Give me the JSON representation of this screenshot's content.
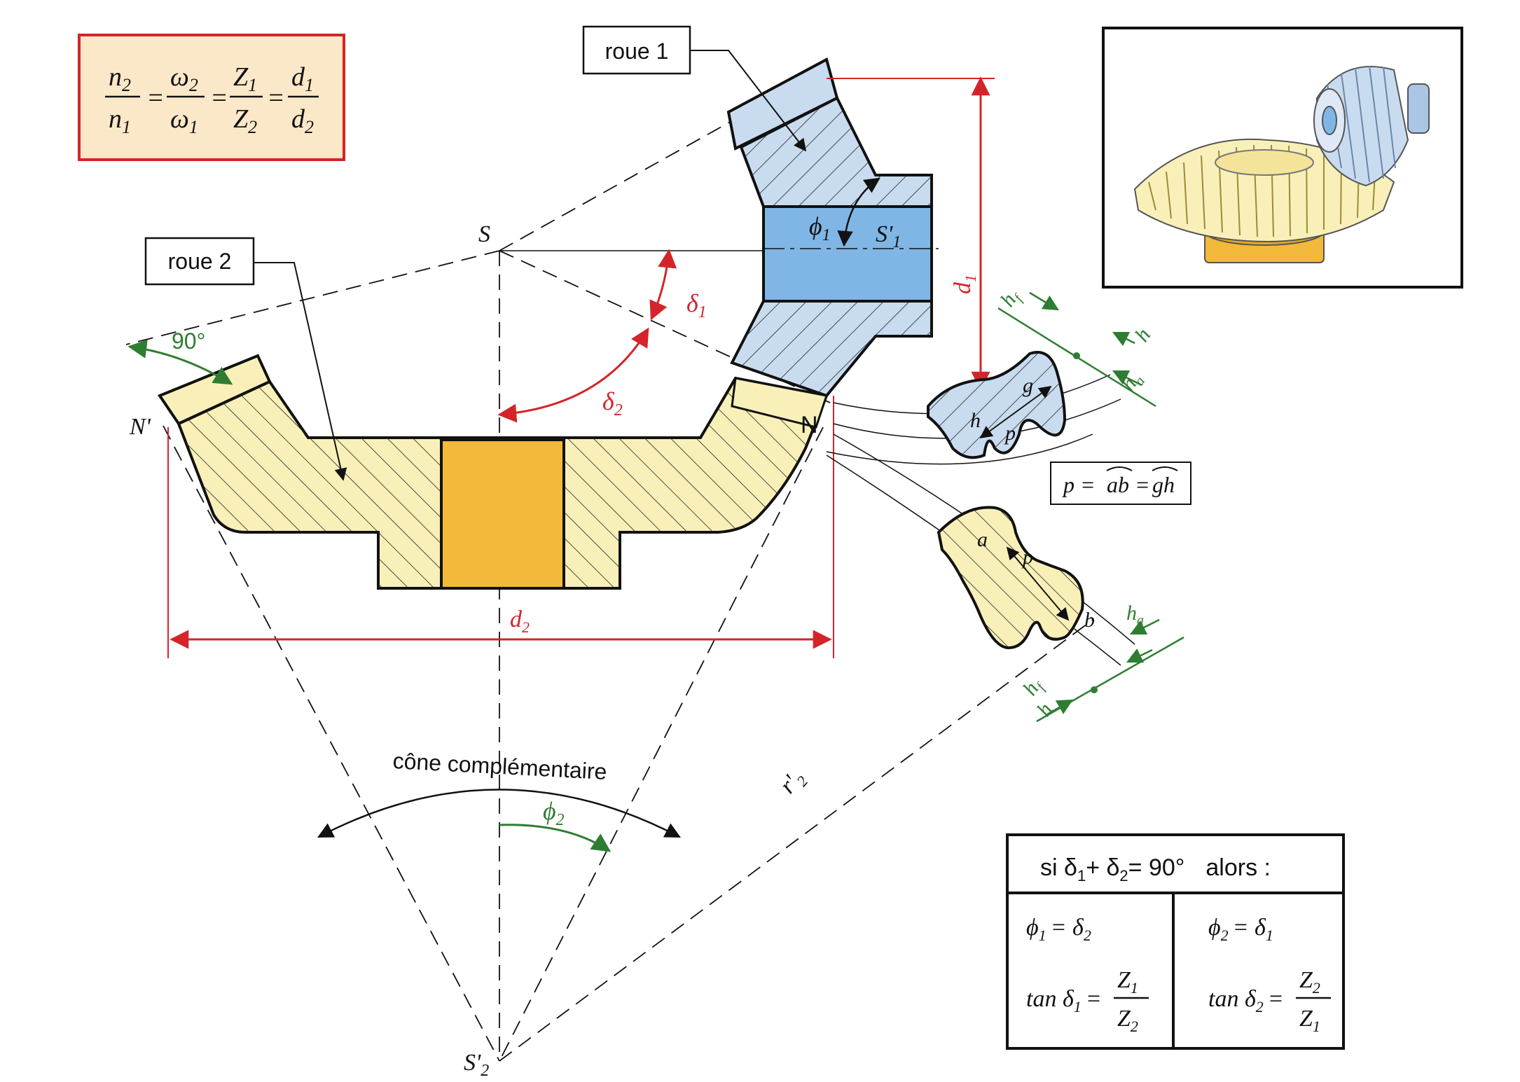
{
  "labels": {
    "roue1": "roue 1",
    "roue2": "roue 2",
    "S": "S",
    "S1p": "S'",
    "S1p_sub": "1",
    "S2p": "S'",
    "S2p_sub": "2",
    "Np": "N'",
    "N": "N",
    "angle90": "90°",
    "delta": "δ",
    "phi": "ϕ",
    "sub1": "1",
    "sub2": "2",
    "d": "d",
    "r": "r'",
    "cone": "cône complémentaire",
    "h": "h",
    "hf": "h",
    "hf_sub": "f",
    "ha": "h",
    "ha_sub": "a",
    "g": "g",
    "p": "p",
    "a": "a",
    "b": "b",
    "pitch_p": "p =",
    "pitch_ab": "ab",
    "pitch_eq": "=",
    "pitch_gh": "gh"
  },
  "formula": {
    "n": "n",
    "omega": "ω",
    "Z": "Z",
    "d": "d",
    "one": "1",
    "two": "2",
    "eq": "="
  },
  "table": {
    "header_si": "si δ",
    "header_plus": "+ δ",
    "header_eq": "= 90°",
    "header_alors": "alors :",
    "left_phi": "ϕ",
    "left_eq": "= δ",
    "left_tan": "tan δ",
    "right_phi": "ϕ",
    "right_eq": "= δ",
    "right_tan": "tan δ",
    "Z": "Z",
    "one": "1",
    "two": "2",
    "eq": "="
  },
  "colors": {
    "wheel1": "#c9dcef",
    "wheel1_bore": "#7fb6e6",
    "wheel2": "#f8f0b8",
    "wheel2_hub": "#f2b93a",
    "red": "#d4242a",
    "green": "#2e7d32",
    "formula_bg": "#fbe8c8",
    "formula_border": "#d4242a"
  }
}
